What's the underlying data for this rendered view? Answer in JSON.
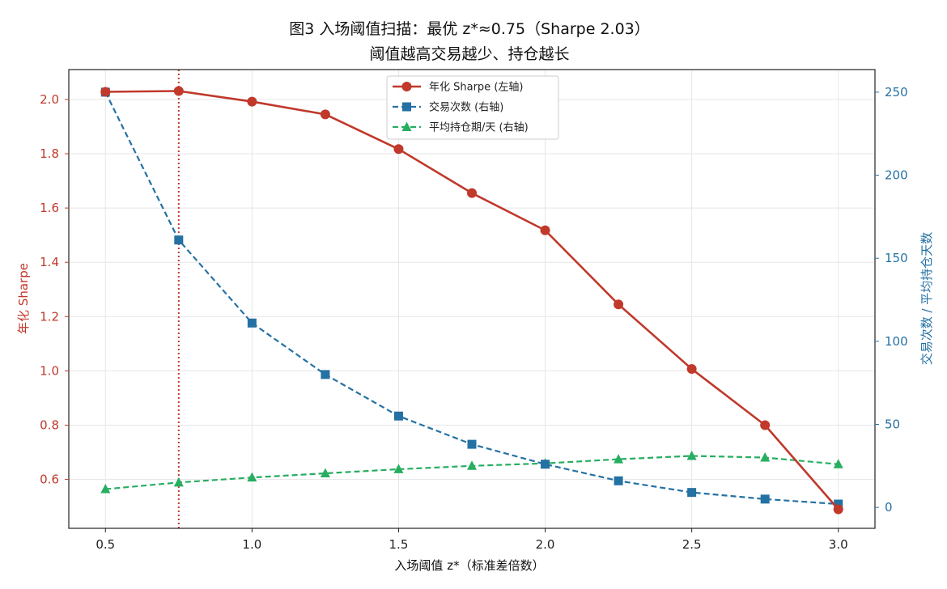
{
  "chart_data": {
    "type": "line",
    "title": "图3  入场阈值扫描：最优 z*≈0.75（Sharpe 2.03）",
    "subtitle": "阈值越高交易越少、持仓越长",
    "xlabel": "入场阈值 z*（标准差倍数）",
    "ylabel_left": "年化 Sharpe",
    "ylabel_right": "交易次数 / 平均持仓天数",
    "xlim": [
      0.375,
      3.125
    ],
    "ylim_left": [
      0.42,
      2.11
    ],
    "ylim_right": [
      -12.6,
      263.6
    ],
    "x_ticks": [
      "0.5",
      "1.0",
      "1.5",
      "2.0",
      "2.5",
      "3.0"
    ],
    "y_ticks_left": [
      "0.6",
      "0.8",
      "1.0",
      "1.2",
      "1.4",
      "1.6",
      "1.8",
      "2.0"
    ],
    "y_ticks_right": [
      "0",
      "50",
      "100",
      "150",
      "200",
      "250"
    ],
    "grid": true,
    "legend_position": "top-center",
    "x": [
      0.5,
      0.75,
      1.0,
      1.25,
      1.5,
      1.75,
      2.0,
      2.25,
      2.5,
      2.75,
      3.0
    ],
    "series": [
      {
        "name": "年化 Sharpe (左轴)",
        "axis": "left",
        "color": "#c0392b",
        "marker": "circle",
        "style": "solid",
        "values": [
          2.028,
          2.031,
          1.992,
          1.945,
          1.817,
          1.655,
          1.518,
          1.245,
          1.007,
          0.8,
          0.49
        ]
      },
      {
        "name": "交易次数 (右轴)",
        "axis": "right",
        "color": "#2471a3",
        "marker": "square",
        "style": "dashed",
        "values": [
          250,
          161,
          111,
          80,
          55,
          38,
          26,
          16,
          9,
          5,
          2
        ]
      },
      {
        "name": "平均持仓期/天 (右轴)",
        "axis": "right",
        "color": "#27ae60",
        "marker": "triangle",
        "style": "dashed",
        "values": [
          11,
          15,
          18,
          20.5,
          23,
          25,
          26.5,
          29,
          31,
          30,
          26
        ]
      }
    ],
    "optimal_x": 0.75,
    "optimal_line_color": "#c0392b"
  }
}
